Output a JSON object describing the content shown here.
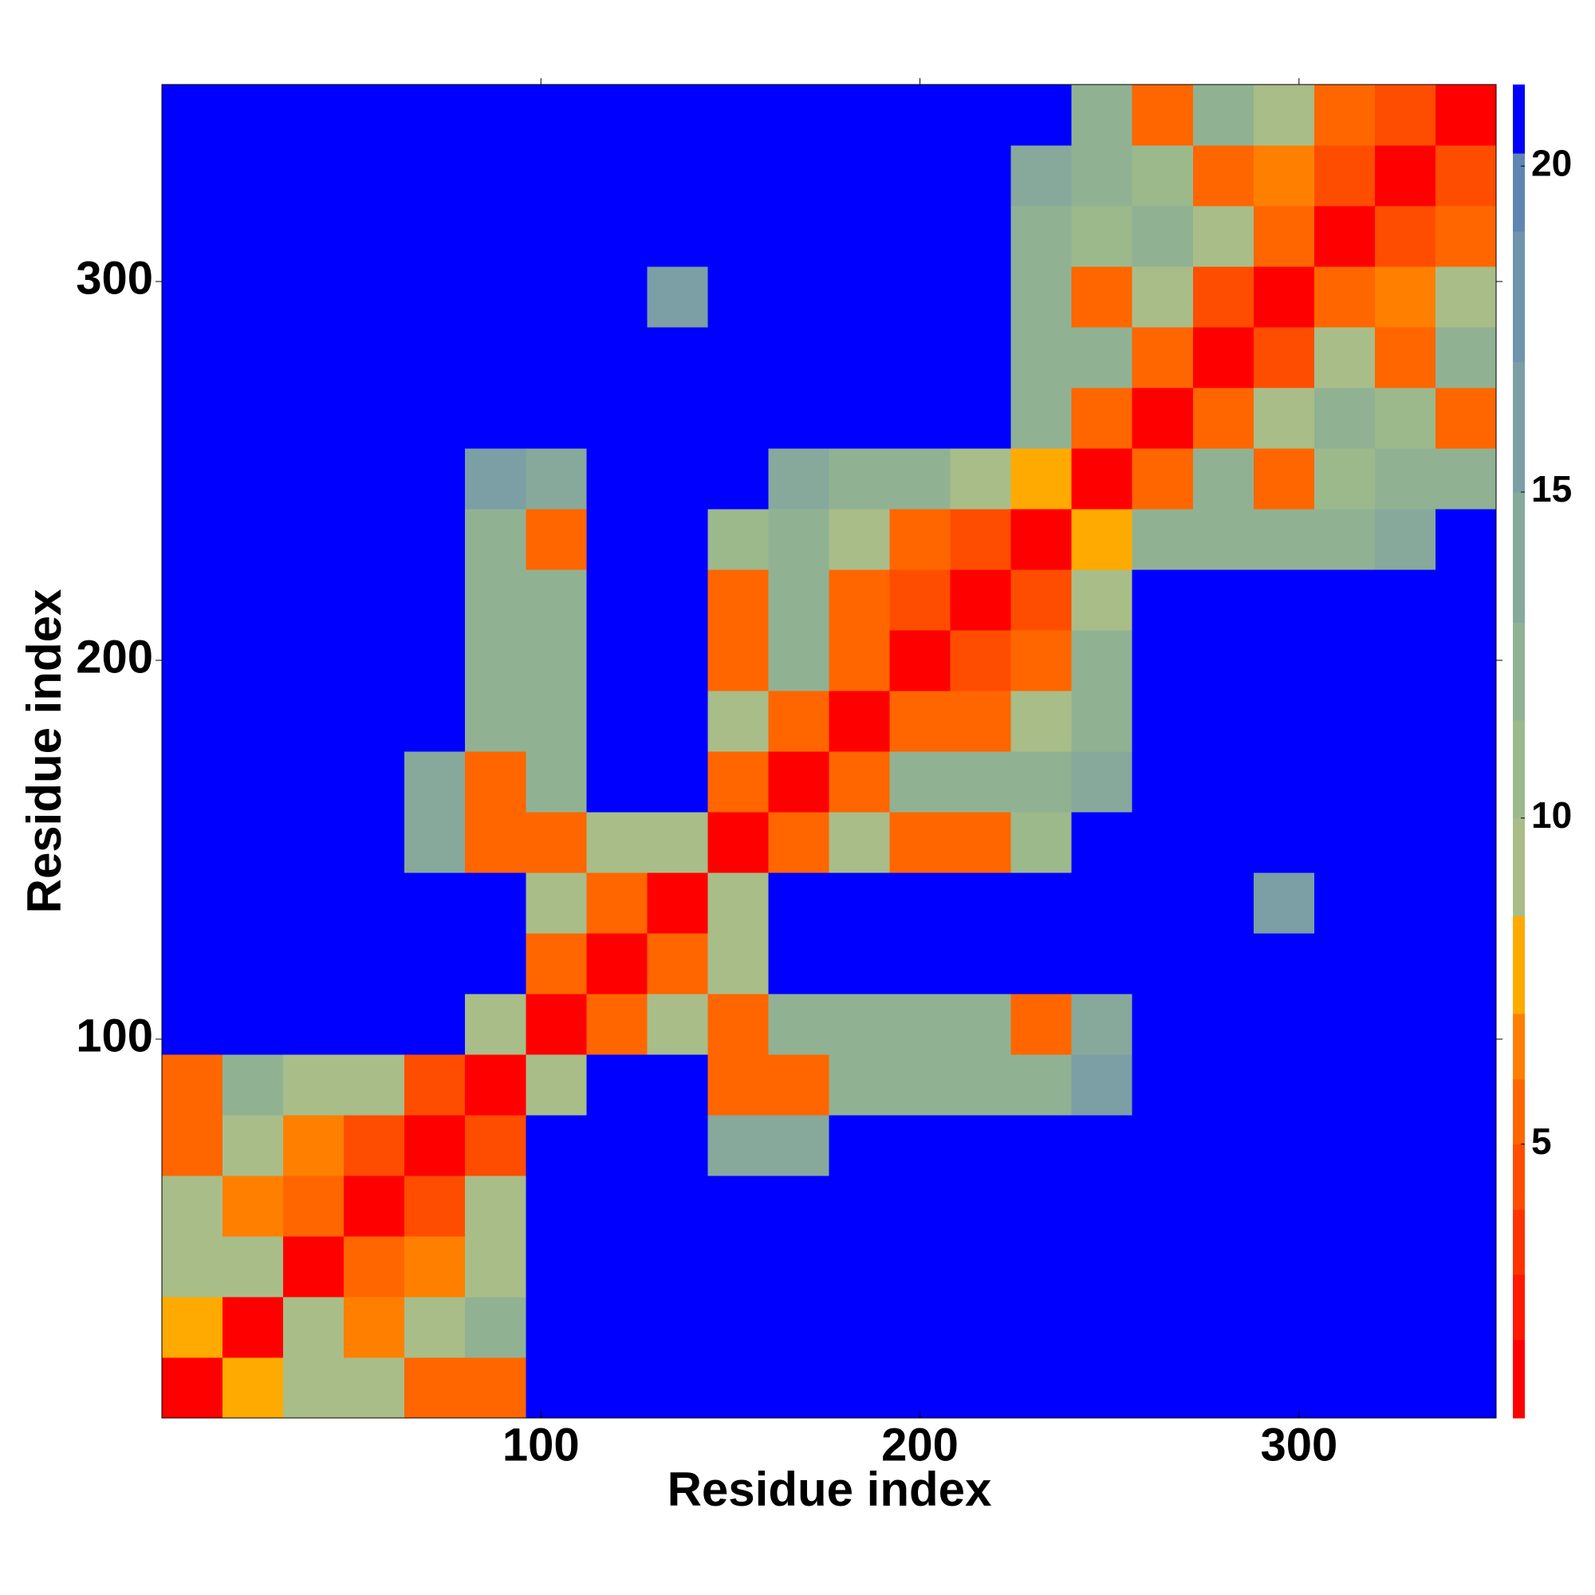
{
  "chart_data": {
    "type": "heatmap",
    "x_label": "Residue index",
    "y_label": "Residue index",
    "xlim": [
      0,
      352
    ],
    "ylim": [
      0,
      352
    ],
    "xticks": [
      100,
      200,
      300
    ],
    "yticks": [
      100,
      200,
      300
    ],
    "xbins": [
      0,
      16,
      32,
      48,
      64,
      80,
      96,
      112,
      128,
      144,
      160,
      176,
      192,
      208,
      224,
      240,
      256,
      272,
      288,
      304,
      320,
      336,
      352
    ],
    "ybins": [
      0,
      16,
      32,
      48,
      64,
      80,
      96,
      112,
      128,
      144,
      160,
      176,
      192,
      208,
      224,
      240,
      256,
      272,
      288,
      304,
      320,
      336,
      352
    ],
    "z": [
      [
        1,
        8,
        10,
        10,
        6,
        6,
        21,
        21,
        21,
        21,
        21,
        21,
        21,
        21,
        21,
        21,
        21,
        21,
        21,
        21,
        21,
        21
      ],
      [
        8,
        1,
        9,
        7,
        9,
        12,
        21,
        21,
        21,
        21,
        21,
        21,
        21,
        21,
        21,
        21,
        21,
        21,
        21,
        21,
        21,
        21
      ],
      [
        10,
        9,
        1,
        6,
        7,
        10,
        21,
        21,
        21,
        21,
        21,
        21,
        21,
        21,
        21,
        21,
        21,
        21,
        21,
        21,
        21,
        21
      ],
      [
        10,
        7,
        6,
        1,
        5,
        9,
        21,
        21,
        21,
        21,
        21,
        21,
        21,
        21,
        21,
        21,
        21,
        21,
        21,
        21,
        21,
        21
      ],
      [
        6,
        9,
        7,
        5,
        1,
        5,
        21,
        21,
        21,
        14,
        15,
        21,
        21,
        21,
        21,
        21,
        21,
        21,
        21,
        21,
        21,
        21
      ],
      [
        6,
        12,
        10,
        9,
        5,
        1,
        10,
        21,
        21,
        6,
        6,
        12,
        12,
        13,
        12,
        16,
        21,
        21,
        21,
        21,
        21,
        21
      ],
      [
        21,
        21,
        21,
        21,
        21,
        10,
        1,
        6,
        10,
        6,
        12,
        13,
        12,
        12,
        6,
        14,
        21,
        21,
        21,
        21,
        21,
        21
      ],
      [
        21,
        21,
        21,
        21,
        21,
        21,
        6,
        1,
        6,
        9,
        21,
        21,
        21,
        21,
        21,
        21,
        21,
        21,
        21,
        21,
        21,
        21
      ],
      [
        21,
        21,
        21,
        21,
        21,
        21,
        10,
        6,
        1,
        10,
        21,
        21,
        21,
        21,
        21,
        21,
        21,
        21,
        17,
        21,
        21,
        21
      ],
      [
        21,
        21,
        21,
        21,
        14,
        6,
        6,
        9,
        10,
        1,
        6,
        10,
        6,
        6,
        11,
        21,
        21,
        21,
        21,
        21,
        21,
        21
      ],
      [
        21,
        21,
        21,
        21,
        15,
        6,
        12,
        21,
        21,
        6,
        1,
        6,
        12,
        12,
        13,
        14,
        21,
        21,
        21,
        21,
        21,
        21
      ],
      [
        21,
        21,
        21,
        21,
        21,
        12,
        13,
        21,
        21,
        10,
        6,
        1,
        6,
        6,
        10,
        12,
        21,
        21,
        21,
        21,
        21,
        21
      ],
      [
        21,
        21,
        21,
        21,
        21,
        12,
        12,
        21,
        21,
        6,
        12,
        6,
        1,
        5,
        6,
        12,
        21,
        21,
        21,
        21,
        21,
        21
      ],
      [
        21,
        21,
        21,
        21,
        21,
        13,
        12,
        21,
        21,
        6,
        12,
        6,
        5,
        1,
        5,
        9,
        21,
        21,
        21,
        21,
        21,
        21
      ],
      [
        21,
        21,
        21,
        21,
        21,
        12,
        6,
        21,
        21,
        11,
        13,
        10,
        6,
        5,
        1,
        8,
        12,
        12,
        12,
        13,
        14,
        21
      ],
      [
        21,
        21,
        21,
        21,
        21,
        16,
        14,
        21,
        21,
        21,
        14,
        12,
        12,
        9,
        8,
        1,
        6,
        12,
        6,
        11,
        12,
        13
      ],
      [
        21,
        21,
        21,
        21,
        21,
        21,
        21,
        21,
        21,
        21,
        21,
        21,
        21,
        21,
        12,
        6,
        1,
        6,
        10,
        12,
        11,
        6
      ],
      [
        21,
        21,
        21,
        21,
        21,
        21,
        21,
        21,
        21,
        21,
        21,
        21,
        21,
        21,
        12,
        12,
        6,
        1,
        5,
        10,
        6,
        12
      ],
      [
        21,
        21,
        21,
        21,
        21,
        21,
        21,
        21,
        17,
        21,
        21,
        21,
        21,
        21,
        12,
        6,
        10,
        5,
        1,
        6,
        7,
        10
      ],
      [
        21,
        21,
        21,
        21,
        21,
        21,
        21,
        21,
        21,
        21,
        21,
        21,
        21,
        21,
        13,
        11,
        12,
        10,
        6,
        1,
        5,
        6
      ],
      [
        21,
        21,
        21,
        21,
        21,
        21,
        21,
        21,
        21,
        21,
        21,
        21,
        21,
        21,
        14,
        12,
        11,
        6,
        7,
        5,
        1,
        5
      ],
      [
        21,
        21,
        21,
        21,
        21,
        21,
        21,
        21,
        21,
        21,
        21,
        21,
        21,
        21,
        21,
        13,
        6,
        12,
        10,
        6,
        5,
        1
      ]
    ],
    "zlim": [
      0.8,
      21.25
    ],
    "zticks": [
      5,
      10,
      15,
      20
    ],
    "color_levels": [
      0.8,
      2,
      3,
      4,
      5,
      6,
      7,
      8.5,
      10,
      11.5,
      13,
      15,
      17,
      19,
      20.2,
      21.25
    ],
    "colors": [
      "#ff0000",
      "#ff1a00",
      "#ff3300",
      "#ff4d00",
      "#ff6600",
      "#ff8000",
      "#ffaa00",
      "#a9bd88",
      "#9cb98c",
      "#90b293",
      "#86a99c",
      "#7b9fa5",
      "#6e95ac",
      "#5d86b3",
      "#0000ff"
    ]
  }
}
